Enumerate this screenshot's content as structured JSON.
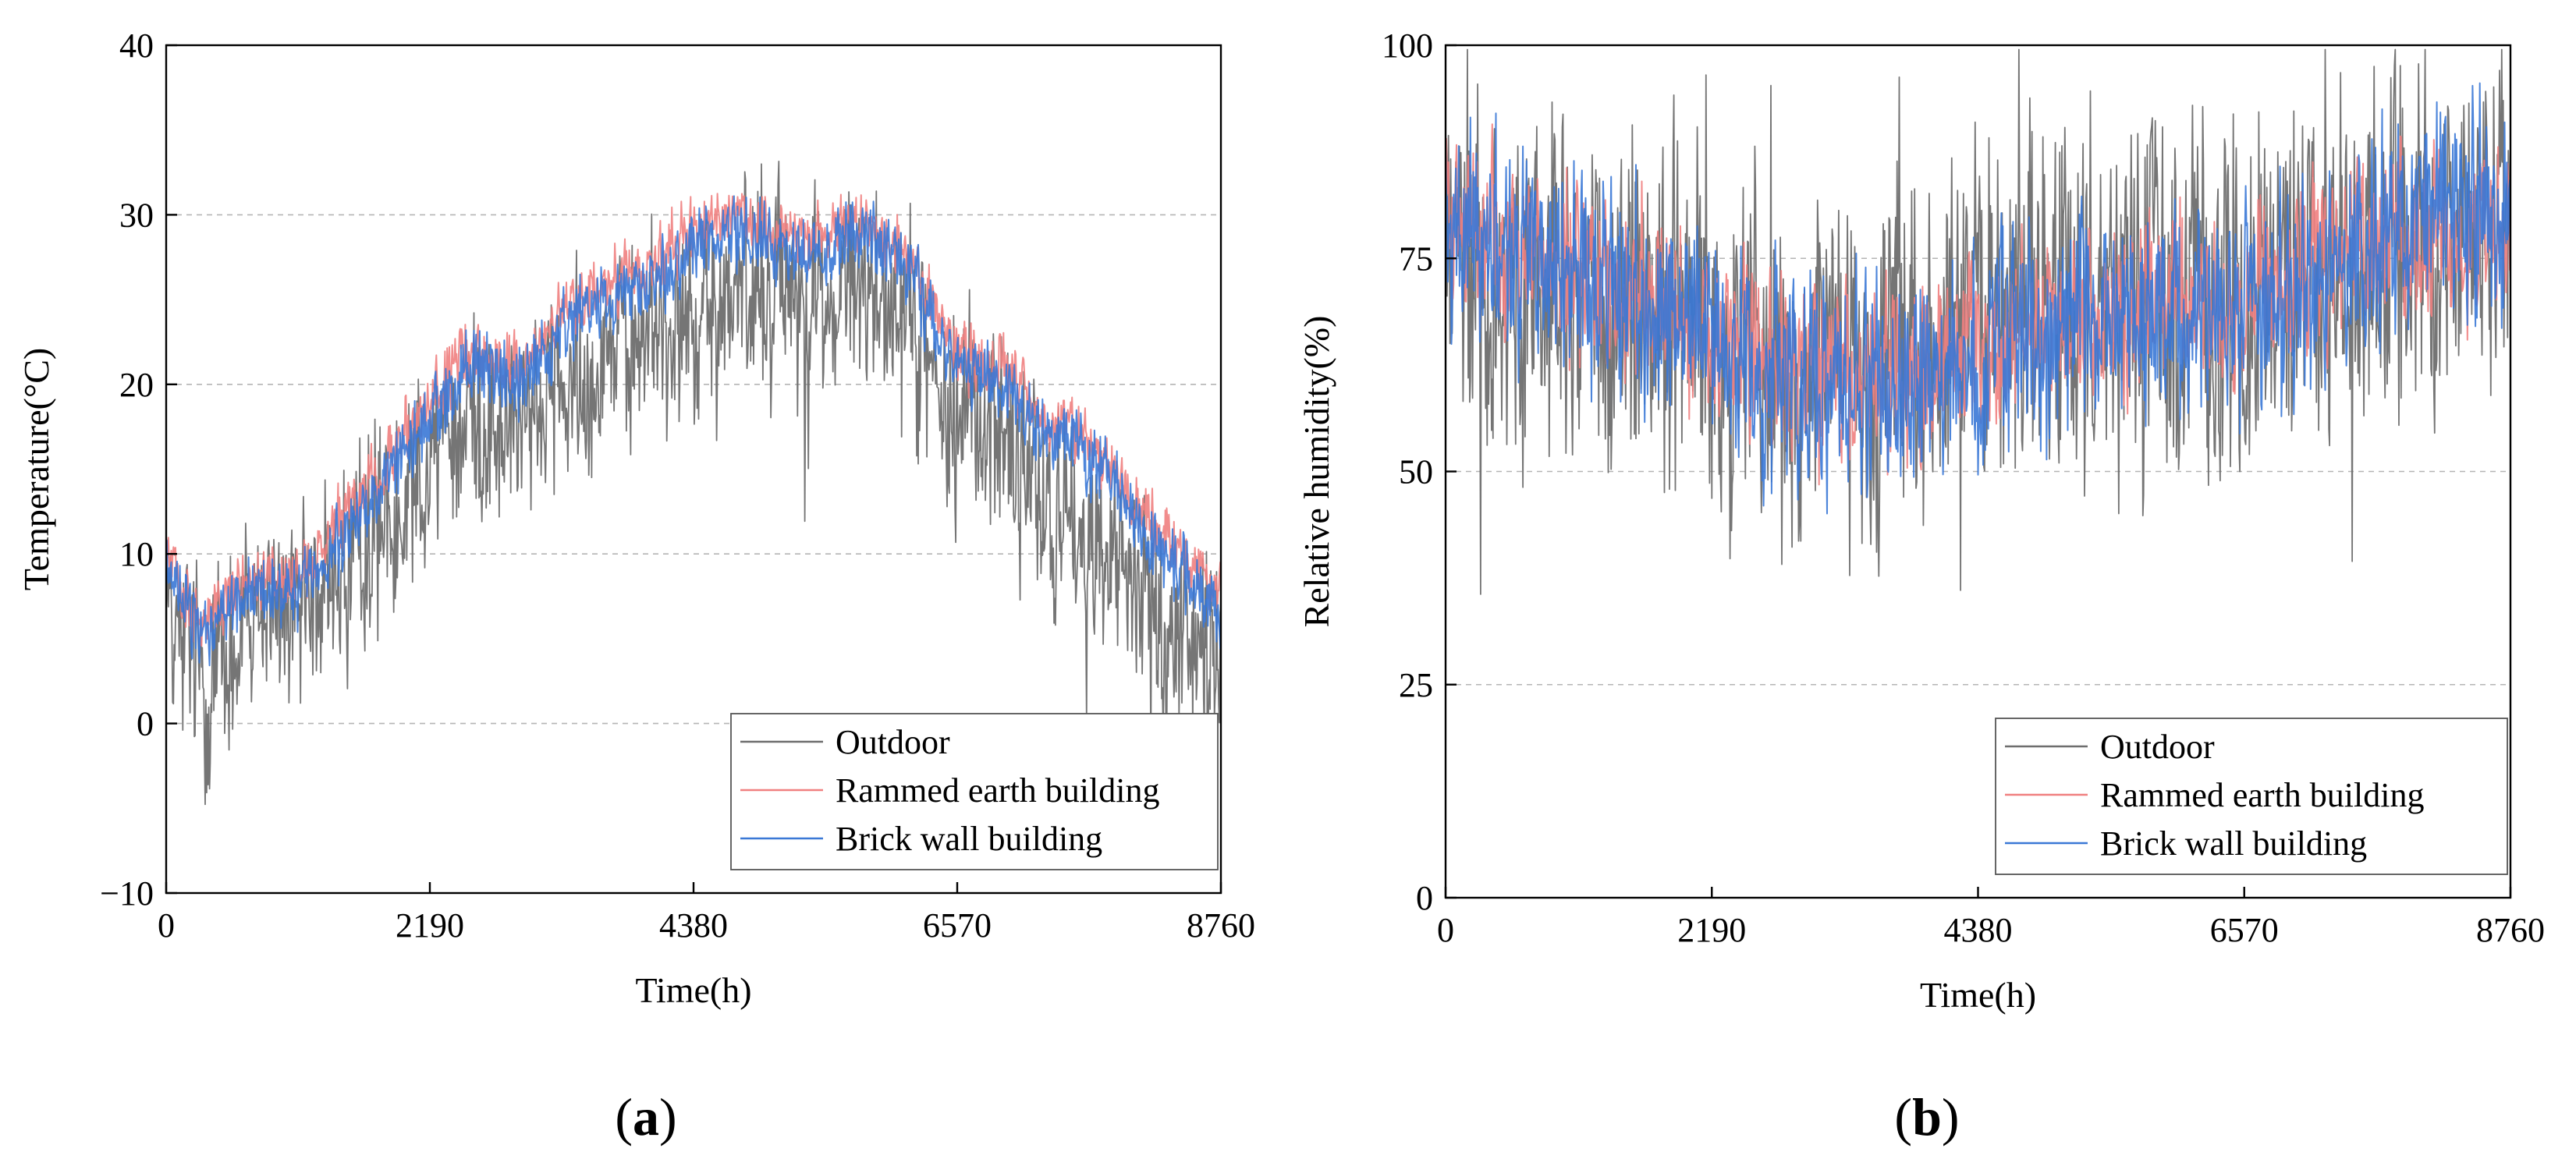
{
  "figure": {
    "panels": [
      {
        "label_open": "(",
        "label_letter": "a",
        "label_close": ")"
      },
      {
        "label_open": "(",
        "label_letter": "b",
        "label_close": ")"
      }
    ]
  },
  "chart_data": [
    {
      "type": "line",
      "panel": "a",
      "title": "",
      "xlabel": "Time(h)",
      "ylabel": "Temperature(°C)",
      "xlim": [
        0,
        8760
      ],
      "ylim": [
        -10,
        40
      ],
      "x_ticks": [
        0,
        2190,
        4380,
        6570,
        8760
      ],
      "x_tick_labels": [
        "0",
        "2190",
        "4380",
        "6570",
        "8760"
      ],
      "y_ticks": [
        -10,
        0,
        10,
        20,
        30,
        40
      ],
      "y_tick_labels": [
        "−10",
        "0",
        "10",
        "20",
        "30",
        "40"
      ],
      "grid": "horizontal dashed",
      "legend_position": "bottom-right",
      "noise_amplitude": [
        7,
        2.2,
        2.6
      ],
      "series": [
        {
          "name": "Outdoor",
          "color": "#6e6e6e",
          "x": [
            0,
            300,
            730,
            1100,
            1460,
            1800,
            2190,
            2500,
            2920,
            3285,
            3650,
            4015,
            4380,
            4745,
            5110,
            5475,
            5840,
            6205,
            6570,
            6935,
            7300,
            7665,
            8030,
            8395,
            8760
          ],
          "values": [
            8,
            2,
            6,
            7,
            9,
            12,
            16,
            18,
            17,
            20,
            22,
            23,
            24,
            25,
            26,
            25,
            26,
            23,
            19,
            17,
            13,
            11,
            8,
            5,
            4
          ]
        },
        {
          "name": "Rammed earth building",
          "color": "#f08080",
          "x": [
            0,
            300,
            730,
            1100,
            1460,
            1800,
            2190,
            2500,
            2920,
            3285,
            3650,
            4015,
            4380,
            4745,
            5110,
            5475,
            5840,
            6205,
            6570,
            6935,
            7300,
            7665,
            8030,
            8395,
            8760
          ],
          "values": [
            10,
            6,
            9,
            8,
            12,
            15,
            19,
            22,
            21,
            24,
            26,
            27,
            29,
            30,
            29,
            29,
            30,
            27,
            22,
            21,
            18,
            17,
            13,
            10,
            8
          ]
        },
        {
          "name": "Brick wall building",
          "color": "#3a78d6",
          "x": [
            0,
            300,
            730,
            1100,
            1460,
            1800,
            2190,
            2500,
            2920,
            3285,
            3650,
            4015,
            4380,
            4745,
            5110,
            5475,
            5840,
            6205,
            6570,
            6935,
            7300,
            7665,
            8030,
            8395,
            8760
          ],
          "values": [
            9,
            5,
            8,
            8,
            11,
            14,
            18,
            21,
            20,
            23,
            25,
            26,
            28,
            29,
            28,
            28,
            29,
            26,
            21,
            20,
            17,
            16,
            12,
            9,
            7
          ]
        }
      ]
    },
    {
      "type": "line",
      "panel": "b",
      "title": "",
      "xlabel": "Time(h)",
      "ylabel": "Relative humidity(%)",
      "xlim": [
        0,
        8760
      ],
      "ylim": [
        0,
        100
      ],
      "x_ticks": [
        0,
        2190,
        4380,
        6570,
        8760
      ],
      "x_tick_labels": [
        "0",
        "2190",
        "4380",
        "6570",
        "8760"
      ],
      "y_ticks": [
        0,
        25,
        50,
        75,
        100
      ],
      "y_tick_labels": [
        "0",
        "25",
        "50",
        "75",
        "100"
      ],
      "grid": "horizontal dashed",
      "legend_position": "bottom-right",
      "noise_amplitude": [
        24,
        12,
        15
      ],
      "series": [
        {
          "name": "Outdoor",
          "color": "#6e6e6e",
          "x": [
            0,
            730,
            1460,
            2190,
            2920,
            3650,
            4380,
            5110,
            5840,
            6570,
            7300,
            8030,
            8760
          ],
          "values": [
            75,
            72,
            70,
            66,
            62,
            64,
            68,
            70,
            72,
            70,
            74,
            76,
            78
          ]
        },
        {
          "name": "Rammed earth building",
          "color": "#f08080",
          "x": [
            0,
            730,
            1460,
            2190,
            2920,
            3650,
            4380,
            5110,
            5840,
            6570,
            7300,
            8030,
            8760
          ],
          "values": [
            80,
            75,
            72,
            66,
            62,
            60,
            65,
            68,
            70,
            70,
            76,
            78,
            80
          ]
        },
        {
          "name": "Brick wall building",
          "color": "#3a78d6",
          "x": [
            0,
            730,
            1460,
            2190,
            2920,
            3650,
            4380,
            5110,
            5840,
            6570,
            7300,
            8030,
            8760
          ],
          "values": [
            82,
            74,
            70,
            64,
            60,
            58,
            64,
            66,
            68,
            68,
            75,
            80,
            82
          ]
        }
      ]
    }
  ]
}
